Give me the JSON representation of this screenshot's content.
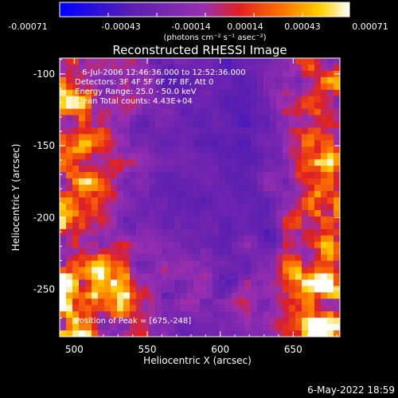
{
  "chart_data": {
    "type": "heatmap",
    "title": "Reconstructed RHESSI Image",
    "xlabel": "Heliocentric X (arcsec)",
    "ylabel": "Heliocentric Y (arcsec)",
    "xlim": [
      490,
      682
    ],
    "ylim": [
      -283,
      -89
    ],
    "x_ticks": [
      500,
      550,
      600,
      650
    ],
    "y_ticks": [
      -100,
      -150,
      -200,
      -250
    ],
    "colorbar": {
      "ticks": [
        "-0.00071",
        "-0.00043",
        "-0.00014",
        "0.00014",
        "0.00043",
        "0.00071"
      ],
      "range": [
        -0.00071,
        0.00071
      ],
      "units": "(photons cm⁻² s⁻¹ asec⁻²)",
      "colors": [
        "#0000ff",
        "#5a1fb0",
        "#9a2fb0",
        "#e02020",
        "#ff7a00",
        "#ffd000",
        "#ffffff"
      ]
    },
    "annotations": [
      "6-Jul-2006 12:46:36.000 to 12:52:36.000",
      "Detectors: 3F 4F 5F 6F 7F 8F, Att 0",
      "Energy Range: 25.0 - 50.0 keV",
      "Clean     Total counts: 4.43E+04"
    ],
    "peak_label": "Position of Peak = [675,-248]",
    "peak": [
      675,
      -248
    ]
  },
  "footer": {
    "date": "6-May-2022 18:59"
  }
}
